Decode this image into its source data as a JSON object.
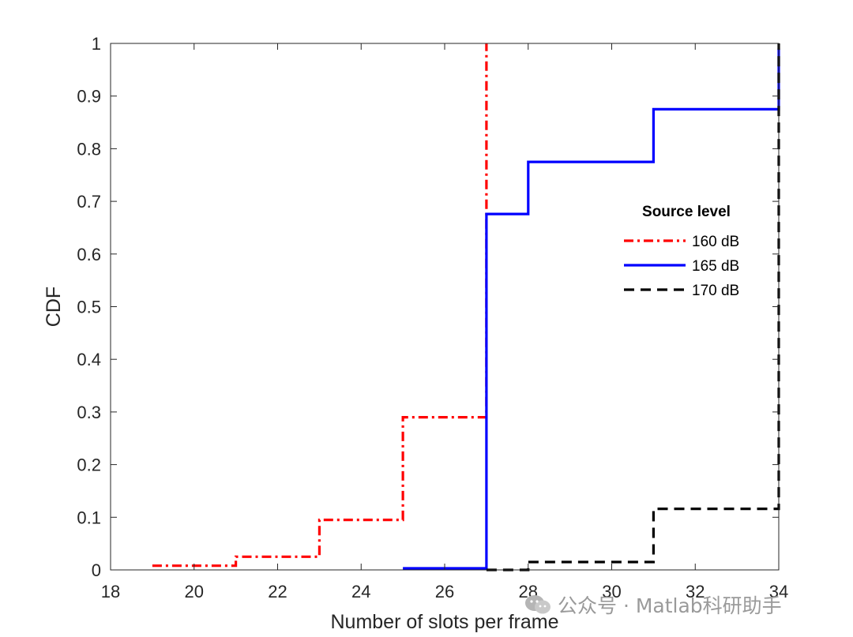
{
  "chart_data": {
    "type": "line",
    "step": true,
    "xlabel": "Number of slots per frame",
    "ylabel": "CDF",
    "xlim": [
      18,
      34
    ],
    "ylim": [
      0,
      1
    ],
    "xticks": [
      "18",
      "20",
      "22",
      "24",
      "26",
      "28",
      "30",
      "32",
      "34"
    ],
    "yticks": [
      "0",
      "0.1",
      "0.2",
      "0.3",
      "0.4",
      "0.5",
      "0.6",
      "0.7",
      "0.8",
      "0.9",
      "1"
    ],
    "grid": false,
    "legend": {
      "title": "Source level",
      "placement": "right"
    },
    "series": [
      {
        "name": "160 dB",
        "color": "#ff0000",
        "dash": "dash-dot",
        "x": [
          19,
          21,
          21,
          23,
          23,
          25,
          25,
          27,
          27
        ],
        "y": [
          0.008,
          0.008,
          0.025,
          0.025,
          0.095,
          0.095,
          0.29,
          0.29,
          1.0
        ]
      },
      {
        "name": "165 dB",
        "color": "#0000ff",
        "dash": "solid",
        "x": [
          25,
          27,
          27,
          28,
          28,
          31,
          31,
          34,
          34
        ],
        "y": [
          0.003,
          0.003,
          0.676,
          0.676,
          0.775,
          0.775,
          0.875,
          0.875,
          0.99
        ]
      },
      {
        "name": "170 dB",
        "color": "#000000",
        "dash": "dashed",
        "x": [
          27,
          28,
          28,
          31,
          31,
          34,
          34
        ],
        "y": [
          0.0,
          0.0,
          0.015,
          0.015,
          0.116,
          0.116,
          1.0
        ]
      }
    ]
  },
  "watermark": {
    "text": "公众号 · Matlab科研助手"
  }
}
